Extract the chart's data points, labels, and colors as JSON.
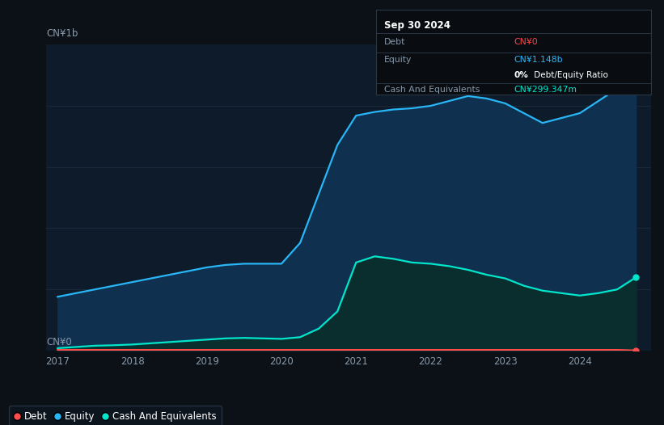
{
  "bg_color": "#0b1117",
  "plot_bg_color": "#0d1b2a",
  "tooltip": {
    "date": "Sep 30 2024",
    "debt_label": "Debt",
    "debt_value": "CN¥0",
    "debt_color": "#ff4444",
    "equity_label": "Equity",
    "equity_value": "CN¥1.148b",
    "equity_color": "#29b6f6",
    "ratio_bold": "0%",
    "ratio_rest": " Debt/Equity Ratio",
    "cash_label": "Cash And Equivalents",
    "cash_value": "CN¥299.347m",
    "cash_color": "#00e5cc"
  },
  "ylabel_text": "CN¥1b",
  "y0_text": "CN¥0",
  "debt_color": "#ff4d4d",
  "equity_color": "#29b6f6",
  "cash_color": "#00e5cc",
  "equity_fill_color": "#103050",
  "cash_fill_color": "#0a2e2e",
  "grid_color": "#1a2a3a",
  "tick_color": "#8899aa",
  "legend_bg": "#0d1520",
  "legend_border": "#2a3a4a",
  "years": [
    2017.0,
    2017.25,
    2017.5,
    2017.75,
    2018.0,
    2018.25,
    2018.5,
    2018.75,
    2019.0,
    2019.25,
    2019.5,
    2019.75,
    2020.0,
    2020.25,
    2020.5,
    2020.75,
    2021.0,
    2021.25,
    2021.5,
    2021.75,
    2022.0,
    2022.25,
    2022.5,
    2022.75,
    2023.0,
    2023.25,
    2023.5,
    2023.75,
    2024.0,
    2024.25,
    2024.5,
    2024.75
  ],
  "equity_values": [
    0.22,
    0.235,
    0.25,
    0.265,
    0.28,
    0.295,
    0.31,
    0.325,
    0.34,
    0.35,
    0.355,
    0.355,
    0.355,
    0.44,
    0.64,
    0.84,
    0.96,
    0.975,
    0.985,
    0.99,
    1.0,
    1.02,
    1.04,
    1.03,
    1.01,
    0.97,
    0.93,
    0.95,
    0.97,
    1.02,
    1.07,
    1.148
  ],
  "cash_values": [
    0.01,
    0.015,
    0.02,
    0.022,
    0.025,
    0.03,
    0.035,
    0.04,
    0.045,
    0.05,
    0.052,
    0.05,
    0.048,
    0.055,
    0.09,
    0.16,
    0.36,
    0.385,
    0.375,
    0.36,
    0.355,
    0.345,
    0.33,
    0.31,
    0.295,
    0.265,
    0.245,
    0.235,
    0.225,
    0.235,
    0.25,
    0.299
  ],
  "debt_values": [
    0.003,
    0.003,
    0.003,
    0.003,
    0.003,
    0.003,
    0.003,
    0.003,
    0.003,
    0.003,
    0.003,
    0.003,
    0.003,
    0.003,
    0.003,
    0.003,
    0.003,
    0.003,
    0.003,
    0.003,
    0.003,
    0.003,
    0.003,
    0.003,
    0.003,
    0.003,
    0.003,
    0.003,
    0.003,
    0.003,
    0.003,
    0.001
  ],
  "ylim": [
    0,
    1.25
  ],
  "xticks": [
    2017,
    2018,
    2019,
    2020,
    2021,
    2022,
    2023,
    2024
  ],
  "xmin": 2016.85,
  "xmax": 2024.95
}
